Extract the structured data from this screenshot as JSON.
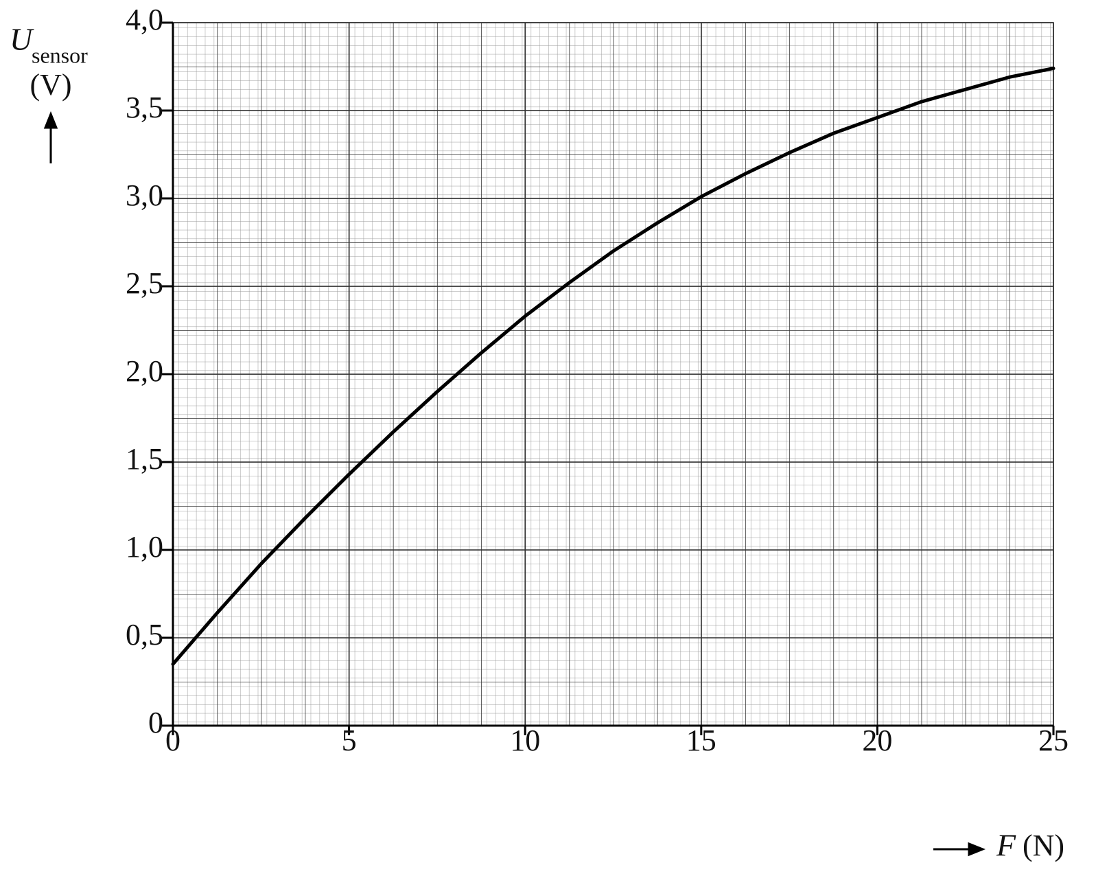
{
  "chart_data": {
    "type": "line",
    "y_label": {
      "symbol": "U",
      "subscript": "sensor",
      "unit": "(V)"
    },
    "x_label": {
      "symbol": "F",
      "unit": "(N)"
    },
    "x": [
      0,
      1.25,
      2.5,
      3.75,
      5,
      6.25,
      7.5,
      8.75,
      10,
      11.25,
      12.5,
      13.75,
      15,
      16.25,
      17.5,
      18.75,
      20,
      21.25,
      22.5,
      23.75,
      25
    ],
    "series": [
      {
        "color": "#000000",
        "values": [
          0.35,
          0.64,
          0.92,
          1.18,
          1.43,
          1.67,
          1.9,
          2.12,
          2.33,
          2.52,
          2.7,
          2.86,
          3.01,
          3.14,
          3.26,
          3.37,
          3.46,
          3.55,
          3.62,
          3.69,
          3.74
        ]
      }
    ],
    "xlim": [
      0,
      25
    ],
    "xticks": [
      0,
      5,
      10,
      15,
      20,
      25
    ],
    "ylim": [
      0,
      4
    ],
    "yticks": [
      0,
      {
        "value": 0.5,
        "label": "0,5"
      },
      {
        "value": 1,
        "label": "1,0"
      },
      {
        "value": 1.5,
        "label": "1,5"
      },
      {
        "value": 2,
        "label": "2,0"
      },
      {
        "value": 2.5,
        "label": "2,5"
      },
      {
        "value": 3,
        "label": "3,0"
      },
      {
        "value": 3.5,
        "label": "3,5"
      },
      {
        "value": 4,
        "label": "4,0"
      }
    ],
    "grid": true
  }
}
